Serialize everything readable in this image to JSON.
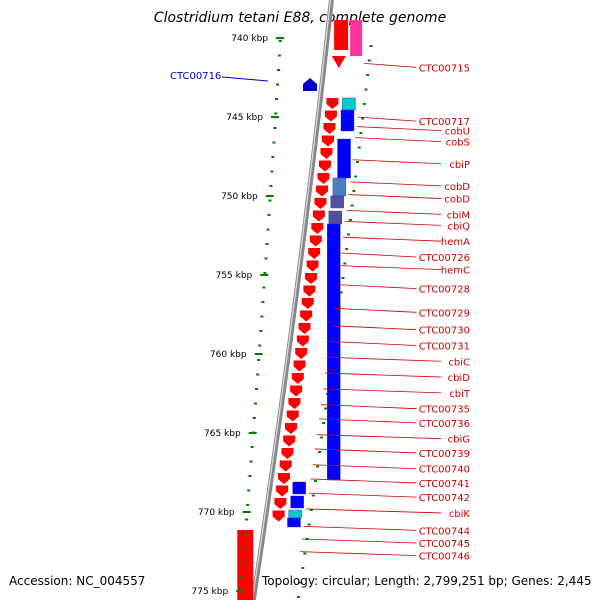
{
  "title": "Clostridium tetani E88, complete genome",
  "accession": "Accession: NC_004557",
  "topology": "Topology: circular; Length: 2,799,251 bp; Genes: 2,445",
  "colors": {
    "forward_gene": "#ff0000",
    "reverse_gene": "#0000ff",
    "gene_cyan": "#00cccc",
    "gene_steel": "#4a80c0",
    "gene_slate": "#5050a0",
    "gene_pink": "#ff3399",
    "label_default": "#cc0000",
    "label_highlight": "#0000cc",
    "tick": "#008000",
    "backbone": "#888888"
  },
  "axis": {
    "unit": "kbp",
    "ticks": [
      "740 kbp",
      "745 kbp",
      "750 kbp",
      "755 kbp",
      "760 kbp",
      "765 kbp",
      "770 kbp",
      "775 kbp"
    ]
  },
  "genes": [
    {
      "label": "CTC00715",
      "kbp": 741.0,
      "strand": "reverse"
    },
    {
      "label": "CTC00716",
      "kbp": 743.2,
      "strand": "forward",
      "highlight": true
    },
    {
      "label": "CTC00717",
      "kbp": 744.4,
      "strand": "reverse"
    },
    {
      "label": "cobU",
      "kbp": 745.0,
      "strand": "reverse"
    },
    {
      "label": "cobS",
      "kbp": 745.7,
      "strand": "reverse"
    },
    {
      "label": "cbiP",
      "kbp": 747.1,
      "strand": "reverse"
    },
    {
      "label": "cobD",
      "kbp": 748.5,
      "strand": "reverse"
    },
    {
      "label": "cobD",
      "kbp": 749.3,
      "strand": "reverse"
    },
    {
      "label": "cbiM",
      "kbp": 750.3,
      "strand": "reverse"
    },
    {
      "label": "cbiQ",
      "kbp": 751.0,
      "strand": "reverse"
    },
    {
      "label": "hemA",
      "kbp": 752.0,
      "strand": "reverse"
    },
    {
      "label": "CTC00726",
      "kbp": 753.0,
      "strand": "reverse"
    },
    {
      "label": "hemC",
      "kbp": 753.8,
      "strand": "reverse"
    },
    {
      "label": "CTC00728",
      "kbp": 755.0,
      "strand": "reverse"
    },
    {
      "label": "CTC00729",
      "kbp": 756.5,
      "strand": "reverse"
    },
    {
      "label": "CTC00730",
      "kbp": 757.6,
      "strand": "reverse"
    },
    {
      "label": "CTC00731",
      "kbp": 758.6,
      "strand": "reverse"
    },
    {
      "label": "cbiC",
      "kbp": 759.6,
      "strand": "reverse"
    },
    {
      "label": "cbiD",
      "kbp": 760.6,
      "strand": "reverse"
    },
    {
      "label": "cbiT",
      "kbp": 761.6,
      "strand": "reverse"
    },
    {
      "label": "CTC00735",
      "kbp": 762.6,
      "strand": "reverse"
    },
    {
      "label": "CTC00736",
      "kbp": 763.5,
      "strand": "reverse"
    },
    {
      "label": "cbiG",
      "kbp": 764.5,
      "strand": "reverse"
    },
    {
      "label": "CTC00739",
      "kbp": 765.4,
      "strand": "reverse"
    },
    {
      "label": "CTC00740",
      "kbp": 766.4,
      "strand": "reverse"
    },
    {
      "label": "CTC00741",
      "kbp": 767.3,
      "strand": "reverse"
    },
    {
      "label": "CTC00742",
      "kbp": 768.2,
      "strand": "reverse"
    },
    {
      "label": "cbiK",
      "kbp": 769.2,
      "strand": "reverse"
    },
    {
      "label": "CTC00744",
      "kbp": 770.3,
      "strand": "reverse"
    },
    {
      "label": "CTC00745",
      "kbp": 771.1,
      "strand": "reverse"
    },
    {
      "label": "CTC00746",
      "kbp": 771.9,
      "strand": "reverse"
    }
  ]
}
